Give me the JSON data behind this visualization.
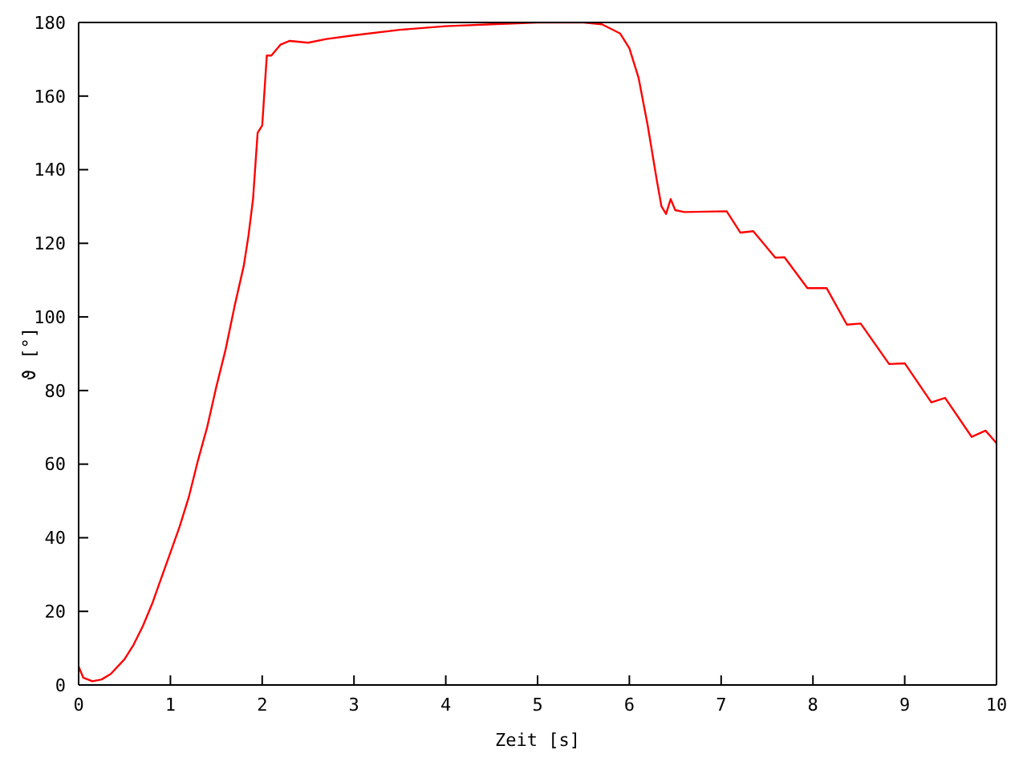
{
  "chart_data": {
    "type": "line",
    "xlabel": "Zeit [s]",
    "ylabel": "ϑ [°]",
    "xlim": [
      0,
      10
    ],
    "xticks": [
      0,
      1,
      2,
      3,
      4,
      5,
      6,
      7,
      8,
      9,
      10
    ],
    "ylim": [
      0,
      180
    ],
    "yticks": [
      0,
      20,
      40,
      60,
      80,
      100,
      120,
      140,
      160,
      180
    ],
    "marker": "none",
    "line_style": "solid",
    "series": [
      {
        "color": "#ff0000",
        "x": [
          0,
          0.05,
          0.15,
          0.25,
          0.35,
          0.5,
          0.6,
          0.7,
          0.8,
          0.9,
          1.0,
          1.1,
          1.2,
          1.3,
          1.4,
          1.5,
          1.6,
          1.7,
          1.8,
          1.85,
          1.9,
          1.95,
          2.0,
          2.05,
          2.1,
          2.2,
          2.3,
          2.5,
          2.7,
          3.0,
          3.5,
          4.0,
          4.5,
          5.0,
          5.5,
          5.7,
          5.9,
          6.0,
          6.1,
          6.2,
          6.3,
          6.35,
          6.4,
          6.45,
          6.5,
          6.6,
          7.06,
          7.21,
          7.35,
          7.59,
          7.69,
          7.94,
          8.15,
          8.37,
          8.52,
          8.83,
          9.0,
          9.29,
          9.44,
          9.73,
          9.88,
          10
        ],
        "values": [
          5,
          2,
          1,
          1.5,
          3,
          7,
          11,
          16,
          22,
          29,
          36,
          43,
          51,
          61,
          70,
          81,
          91,
          103,
          114,
          122,
          132,
          150,
          152,
          171,
          171,
          174,
          175,
          174.5,
          175.5,
          176.5,
          178,
          179,
          179.5,
          180,
          180,
          179.5,
          177,
          173,
          165,
          152,
          137,
          130,
          128,
          132,
          129,
          128.5,
          128.7,
          122.9,
          123.3,
          116.1,
          116.2,
          107.8,
          107.8,
          97.9,
          98.2,
          87.2,
          87.4,
          76.8,
          78,
          67.4,
          69.1,
          65.7
        ]
      }
    ]
  }
}
